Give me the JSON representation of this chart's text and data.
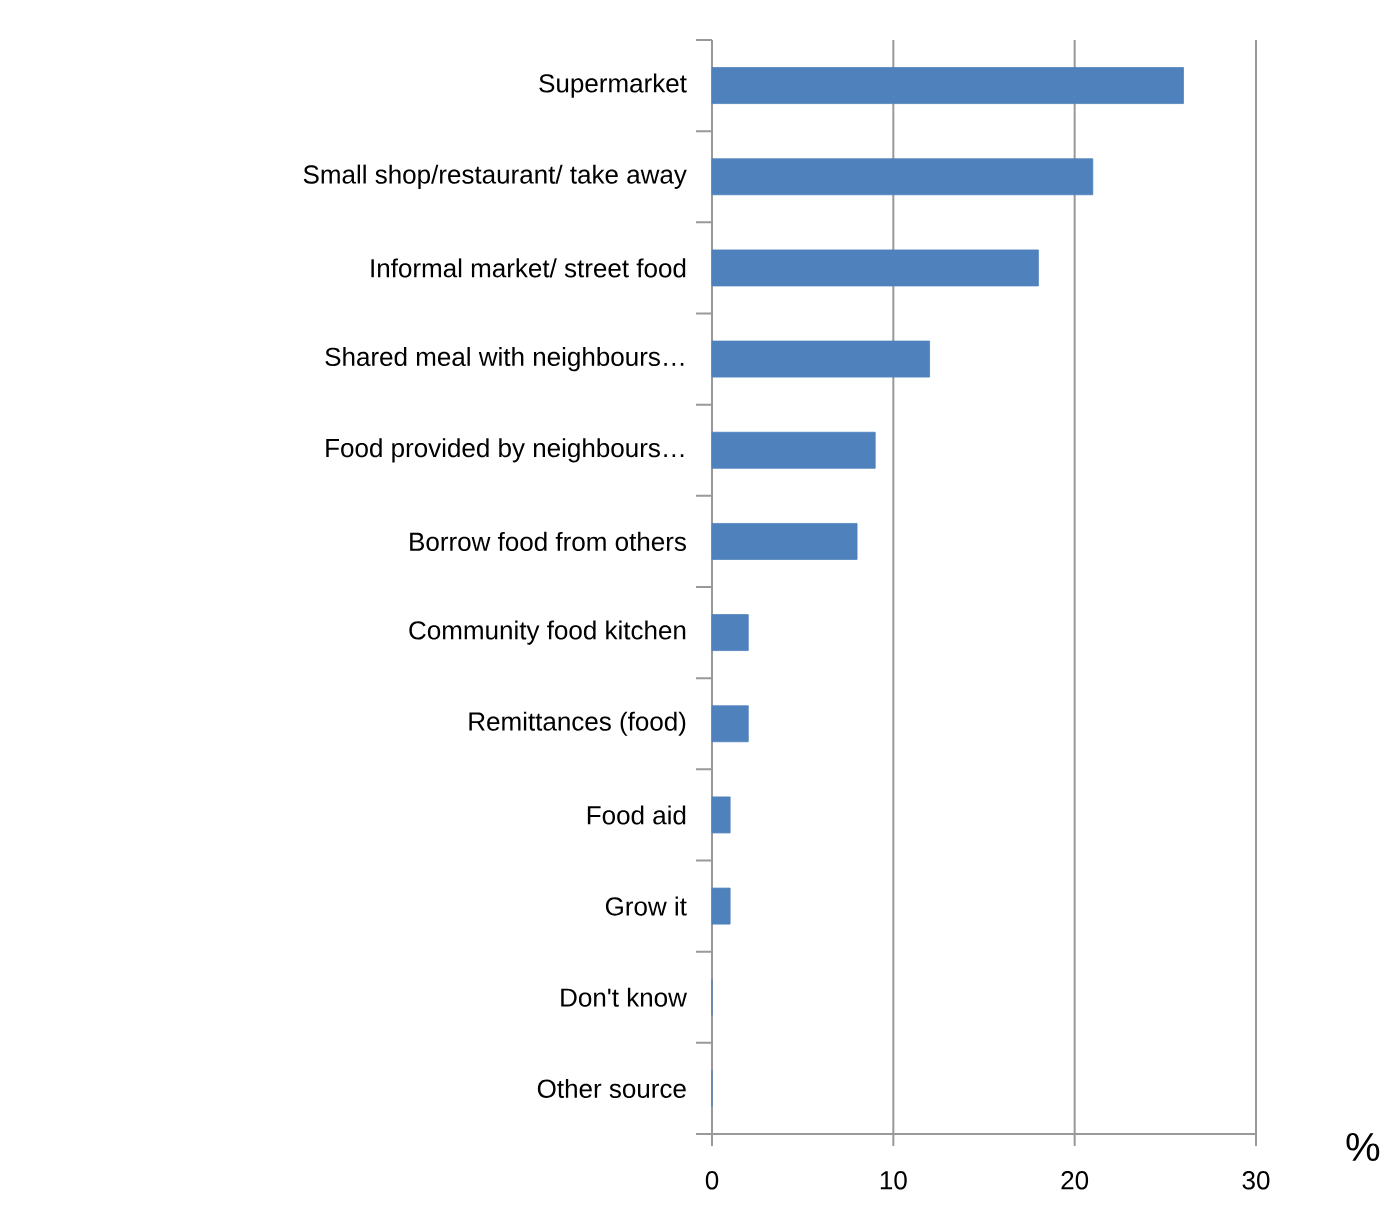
{
  "chart_data": {
    "type": "bar",
    "orientation": "horizontal",
    "xlabel": "%",
    "categories": [
      "Supermarket",
      "Small shop/restaurant/ take away",
      "Informal market/ street food",
      "Shared meal with neighbours…",
      "Food provided by neighbours…",
      "Borrow food from others",
      "Community food kitchen",
      "Remittances (food)",
      "Food aid",
      "Grow it",
      "Don't know",
      "Other source"
    ],
    "values": [
      26,
      21,
      18,
      12,
      9,
      8,
      2,
      2,
      1,
      1,
      0,
      0
    ],
    "color": "#4f81bd",
    "xlim": [
      0,
      30
    ],
    "xticks": [
      0,
      10,
      20,
      30
    ],
    "grid": "x"
  }
}
